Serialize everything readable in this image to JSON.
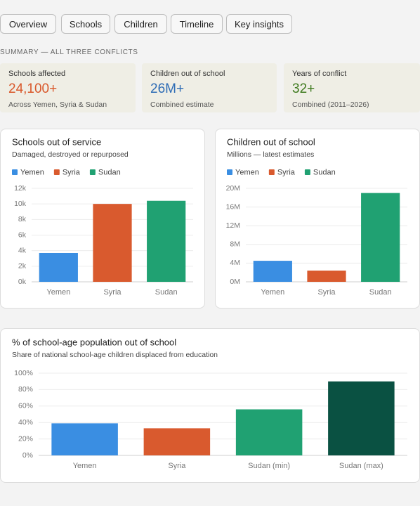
{
  "tabs": [
    "Overview",
    "Schools",
    "Children",
    "Timeline",
    "Key insights"
  ],
  "summary": {
    "label": "SUMMARY — ALL THREE CONFLICTS",
    "cards": [
      {
        "label": "Schools affected",
        "value": "24,100+",
        "note": "Across Yemen, Syria & Sudan"
      },
      {
        "label": "Children out of school",
        "value": "26M+",
        "note": "Combined estimate"
      },
      {
        "label": "Years of conflict",
        "value": "32+",
        "note": "Combined (2011–2026)"
      }
    ]
  },
  "chart_data": [
    {
      "type": "bar",
      "title": "Schools out of service",
      "subtitle": "Damaged, destroyed or repurposed",
      "legend": [
        "Yemen",
        "Syria",
        "Sudan"
      ],
      "categories": [
        "Yemen",
        "Syria",
        "Sudan"
      ],
      "values": [
        3700,
        10000,
        10400
      ],
      "colors": [
        "#3a8ee2",
        "#d95a2e",
        "#20a172"
      ],
      "ylim": [
        0,
        12000
      ],
      "yticks": [
        {
          "value": 0,
          "label": "0k"
        },
        {
          "value": 2000,
          "label": "2k"
        },
        {
          "value": 4000,
          "label": "4k"
        },
        {
          "value": 6000,
          "label": "6k"
        },
        {
          "value": 8000,
          "label": "8k"
        },
        {
          "value": 10000,
          "label": "10k"
        },
        {
          "value": 12000,
          "label": "12k"
        }
      ],
      "grid": true
    },
    {
      "type": "bar",
      "title": "Children out of school",
      "subtitle": "Millions — latest estimates",
      "legend": [
        "Yemen",
        "Syria",
        "Sudan"
      ],
      "categories": [
        "Yemen",
        "Syria",
        "Sudan"
      ],
      "values": [
        4.5,
        2.4,
        19
      ],
      "colors": [
        "#3a8ee2",
        "#d95a2e",
        "#20a172"
      ],
      "ylim": [
        0,
        20
      ],
      "yticks": [
        {
          "value": 0,
          "label": "0M"
        },
        {
          "value": 4,
          "label": "4M"
        },
        {
          "value": 8,
          "label": "8M"
        },
        {
          "value": 12,
          "label": "12M"
        },
        {
          "value": 16,
          "label": "16M"
        },
        {
          "value": 20,
          "label": "20M"
        }
      ],
      "grid": true
    },
    {
      "type": "bar",
      "title": "% of school-age population out of school",
      "subtitle": "Share of national school-age children displaced from education",
      "categories": [
        "Yemen",
        "Syria",
        "Sudan (min)",
        "Sudan (max)"
      ],
      "values": [
        39,
        33,
        56,
        90
      ],
      "colors": [
        "#3a8ee2",
        "#d95a2e",
        "#20a172",
        "#0a5142"
      ],
      "ylim": [
        0,
        100
      ],
      "yticks": [
        {
          "value": 0,
          "label": "0%"
        },
        {
          "value": 20,
          "label": "20%"
        },
        {
          "value": 40,
          "label": "40%"
        },
        {
          "value": 60,
          "label": "60%"
        },
        {
          "value": 80,
          "label": "80%"
        },
        {
          "value": 100,
          "label": "100%"
        }
      ],
      "grid": true
    }
  ]
}
